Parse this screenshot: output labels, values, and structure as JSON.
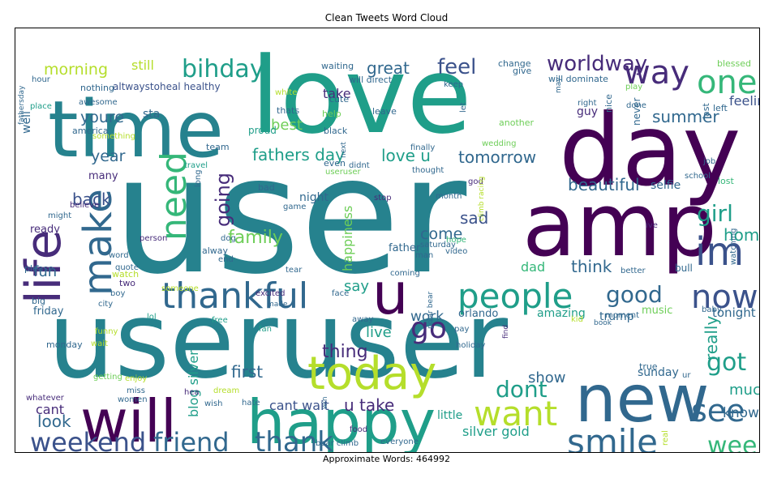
{
  "title": "Clean Tweets Word Cloud",
  "footer": "Approximate Words: 464992",
  "palette": {
    "purple": "#440154",
    "indigo": "#472c7a",
    "blue": "#3b528b",
    "steel": "#31688e",
    "teal": "#26828e",
    "sea": "#1f9e89",
    "green": "#35b779",
    "lime": "#6ece58",
    "yellowgreen": "#b5de2b",
    "yellow": "#e3e418"
  },
  "words": [
    {
      "text": "user",
      "color": "teal"
    },
    {
      "text": "love",
      "color": "sea"
    },
    {
      "text": "day",
      "color": "purple"
    },
    {
      "text": "amp",
      "color": "purple"
    },
    {
      "text": "time",
      "color": "teal"
    },
    {
      "text": "useruser",
      "color": "teal"
    },
    {
      "text": "happy",
      "color": "sea"
    },
    {
      "text": "will",
      "color": "purple"
    },
    {
      "text": "new",
      "color": "steel"
    },
    {
      "text": "today",
      "color": "yellowgreen"
    },
    {
      "text": "life",
      "color": "indigo"
    },
    {
      "text": "thankful",
      "color": "steel"
    },
    {
      "text": "people",
      "color": "sea"
    },
    {
      "text": "u",
      "color": "purple"
    },
    {
      "text": "smile",
      "color": "steel"
    },
    {
      "text": "want",
      "color": "yellowgreen"
    },
    {
      "text": "see",
      "color": "steel"
    },
    {
      "text": "friend",
      "color": "steel"
    },
    {
      "text": "weekend",
      "color": "blue"
    },
    {
      "text": "thank",
      "color": "steel"
    },
    {
      "text": "one",
      "color": "green"
    },
    {
      "text": "way",
      "color": "indigo"
    },
    {
      "text": "make",
      "color": "steel"
    },
    {
      "text": "need",
      "color": "green"
    },
    {
      "text": "im",
      "color": "blue"
    },
    {
      "text": "now",
      "color": "blue"
    },
    {
      "text": "good",
      "color": "steel"
    },
    {
      "text": "got",
      "color": "sea"
    },
    {
      "text": "week",
      "color": "green"
    },
    {
      "text": "bihday",
      "color": "sea"
    },
    {
      "text": "worldway",
      "color": "indigo"
    },
    {
      "text": "feel",
      "color": "blue"
    },
    {
      "text": "girl",
      "color": "sea"
    },
    {
      "text": "go",
      "color": "indigo"
    },
    {
      "text": "dont",
      "color": "sea"
    },
    {
      "text": "going",
      "color": "indigo"
    },
    {
      "text": "family",
      "color": "lime"
    },
    {
      "text": "fathers day",
      "color": "sea"
    },
    {
      "text": "morning",
      "color": "yellowgreen"
    },
    {
      "text": "great",
      "color": "steel"
    },
    {
      "text": "love u",
      "color": "sea"
    },
    {
      "text": "tomorrow",
      "color": "steel"
    },
    {
      "text": "beautiful",
      "color": "steel"
    },
    {
      "text": "summer",
      "color": "steel"
    },
    {
      "text": "take",
      "color": "indigo"
    },
    {
      "text": "youre",
      "color": "steel"
    },
    {
      "text": "best",
      "color": "lime"
    },
    {
      "text": "year",
      "color": "steel"
    },
    {
      "text": "back",
      "color": "blue"
    },
    {
      "text": "first",
      "color": "steel"
    },
    {
      "text": "u take",
      "color": "indigo"
    },
    {
      "text": "look",
      "color": "steel"
    },
    {
      "text": "cant wait",
      "color": "blue"
    },
    {
      "text": "thing",
      "color": "indigo"
    },
    {
      "text": "live",
      "color": "sea"
    },
    {
      "text": "say",
      "color": "sea"
    },
    {
      "text": "work",
      "color": "steel"
    },
    {
      "text": "think",
      "color": "steel"
    },
    {
      "text": "sad",
      "color": "blue"
    },
    {
      "text": "come",
      "color": "steel"
    },
    {
      "text": "home",
      "color": "sea"
    },
    {
      "text": "really",
      "color": "sea"
    },
    {
      "text": "much",
      "color": "sea"
    },
    {
      "text": "show",
      "color": "steel"
    },
    {
      "text": "know",
      "color": "steel"
    },
    {
      "text": "iam positive",
      "color": "steel"
    },
    {
      "text": "silver gold",
      "color": "sea"
    },
    {
      "text": "blog silver",
      "color": "sea"
    },
    {
      "text": "fun",
      "color": "steel"
    },
    {
      "text": "still",
      "color": "yellowgreen"
    },
    {
      "text": "happiness",
      "color": "lime"
    },
    {
      "text": "dad",
      "color": "green"
    },
    {
      "text": "feeling",
      "color": "blue"
    },
    {
      "text": "tonight",
      "color": "steel"
    },
    {
      "text": "sunday",
      "color": "steel"
    },
    {
      "text": "cant",
      "color": "indigo"
    },
    {
      "text": "little",
      "color": "sea"
    },
    {
      "text": "selfie",
      "color": "steel"
    },
    {
      "text": "amazing",
      "color": "sea"
    },
    {
      "text": "trump",
      "color": "steel"
    },
    {
      "text": "music",
      "color": "lime"
    },
    {
      "text": "night",
      "color": "steel"
    },
    {
      "text": "father",
      "color": "steel"
    },
    {
      "text": "orlando",
      "color": "steel"
    },
    {
      "text": "bull",
      "color": "steel"
    },
    {
      "text": "sta",
      "color": "steel"
    },
    {
      "text": "many",
      "color": "indigo"
    },
    {
      "text": "ready",
      "color": "indigo"
    },
    {
      "text": "well",
      "color": "steel"
    },
    {
      "text": "friday",
      "color": "steel"
    },
    {
      "text": "guy",
      "color": "indigo"
    },
    {
      "text": "never",
      "color": "steel"
    },
    {
      "text": "nothing",
      "color": "steel"
    },
    {
      "text": "altwaystoheal healthy",
      "color": "blue"
    },
    {
      "text": "white",
      "color": "yellowgreen"
    },
    {
      "text": "thats",
      "color": "steel"
    },
    {
      "text": "cute",
      "color": "steel"
    },
    {
      "text": "waiting",
      "color": "steel"
    },
    {
      "text": "will direct",
      "color": "steel"
    },
    {
      "text": "change",
      "color": "steel"
    },
    {
      "text": "give",
      "color": "steel"
    },
    {
      "text": "will dominate",
      "color": "steel"
    },
    {
      "text": "blessed",
      "color": "lime"
    },
    {
      "text": "keep",
      "color": "steel"
    },
    {
      "text": "play",
      "color": "lime"
    },
    {
      "text": "right",
      "color": "steel"
    },
    {
      "text": "hour",
      "color": "steel"
    },
    {
      "text": "awesome",
      "color": "steel"
    },
    {
      "text": "place",
      "color": "sea"
    },
    {
      "text": "america",
      "color": "steel"
    },
    {
      "text": "proud",
      "color": "sea"
    },
    {
      "text": "help",
      "color": "lime"
    },
    {
      "text": "black",
      "color": "steel"
    },
    {
      "text": "leave",
      "color": "steel"
    },
    {
      "text": "another",
      "color": "lime"
    },
    {
      "text": "may",
      "color": "steel"
    },
    {
      "text": "left",
      "color": "steel"
    },
    {
      "text": "done",
      "color": "steel"
    },
    {
      "text": "last",
      "color": "steel"
    },
    {
      "text": "nice",
      "color": "steel"
    },
    {
      "text": "let",
      "color": "steel"
    },
    {
      "text": "wedding",
      "color": "lime"
    },
    {
      "text": "finally",
      "color": "steel"
    },
    {
      "text": "team",
      "color": "steel"
    },
    {
      "text": "travel",
      "color": "sea"
    },
    {
      "text": "something",
      "color": "yellowgreen"
    },
    {
      "text": "even",
      "color": "steel"
    },
    {
      "text": "useruser",
      "color": "lime"
    },
    {
      "text": "didnt",
      "color": "steel"
    },
    {
      "text": "thought",
      "color": "steel"
    },
    {
      "text": "god",
      "color": "indigo"
    },
    {
      "text": "job",
      "color": "steel"
    },
    {
      "text": "school",
      "color": "steel"
    },
    {
      "text": "lost",
      "color": "green"
    },
    {
      "text": "fathersday",
      "color": "steel"
    },
    {
      "text": "believe",
      "color": "indigo"
    },
    {
      "text": "might",
      "color": "steel"
    },
    {
      "text": "long",
      "color": "steel"
    },
    {
      "text": "bad",
      "color": "steel"
    },
    {
      "text": "game",
      "color": "steel"
    },
    {
      "text": "next",
      "color": "steel"
    },
    {
      "text": "stop",
      "color": "indigo"
    },
    {
      "text": "month",
      "color": "steel"
    },
    {
      "text": "ive",
      "color": "indigo"
    },
    {
      "text": "saturday",
      "color": "steel"
    },
    {
      "text": "climb racing",
      "color": "yellowgreen"
    },
    {
      "text": "person",
      "color": "indigo"
    },
    {
      "text": "dog",
      "color": "steel"
    },
    {
      "text": "end",
      "color": "steel"
    },
    {
      "text": "alway",
      "color": "steel"
    },
    {
      "text": "word",
      "color": "steel"
    },
    {
      "text": "quote",
      "color": "steel"
    },
    {
      "text": "please",
      "color": "steel"
    },
    {
      "text": "watch",
      "color": "yellowgreen"
    },
    {
      "text": "two",
      "color": "indigo"
    },
    {
      "text": "boy",
      "color": "steel"
    },
    {
      "text": "big",
      "color": "steel"
    },
    {
      "text": "city",
      "color": "steel"
    },
    {
      "text": "someone",
      "color": "yellowgreen"
    },
    {
      "text": "tear",
      "color": "steel"
    },
    {
      "text": "man",
      "color": "steel"
    },
    {
      "text": "hope",
      "color": "green"
    },
    {
      "text": "video",
      "color": "steel"
    },
    {
      "text": "better",
      "color": "steel"
    },
    {
      "text": "watching",
      "color": "steel"
    },
    {
      "text": "coming",
      "color": "steel"
    },
    {
      "text": "face",
      "color": "steel"
    },
    {
      "text": "excited",
      "color": "indigo"
    },
    {
      "text": "made",
      "color": "steel"
    },
    {
      "text": "lol",
      "color": "sea"
    },
    {
      "text": "funny",
      "color": "yellowgreen"
    },
    {
      "text": "free",
      "color": "sea"
    },
    {
      "text": "fan",
      "color": "sea"
    },
    {
      "text": "away",
      "color": "steel"
    },
    {
      "text": "polar bear",
      "color": "steel"
    },
    {
      "text": "pay",
      "color": "steel"
    },
    {
      "text": "find",
      "color": "indigo"
    },
    {
      "text": "book",
      "color": "steel"
    },
    {
      "text": "kid",
      "color": "yellowgreen"
    },
    {
      "text": "moment",
      "color": "steel"
    },
    {
      "text": "baby",
      "color": "steel"
    },
    {
      "text": "monday",
      "color": "steel"
    },
    {
      "text": "wait",
      "color": "yellowgreen"
    },
    {
      "text": "holiday",
      "color": "steel"
    },
    {
      "text": "true",
      "color": "steel"
    },
    {
      "text": "getting",
      "color": "lime"
    },
    {
      "text": "enjoy",
      "color": "yellowgreen"
    },
    {
      "text": "hea",
      "color": "indigo"
    },
    {
      "text": "dream",
      "color": "yellowgreen"
    },
    {
      "text": "ur",
      "color": "steel"
    },
    {
      "text": "whatever",
      "color": "indigo"
    },
    {
      "text": "miss",
      "color": "steel"
    },
    {
      "text": "women",
      "color": "steel"
    },
    {
      "text": "wish",
      "color": "steel"
    },
    {
      "text": "hate",
      "color": "steel"
    },
    {
      "text": "win",
      "color": "steel"
    },
    {
      "text": "food",
      "color": "indigo"
    },
    {
      "text": "bear climb",
      "color": "steel"
    },
    {
      "text": "everyone",
      "color": "steel"
    },
    {
      "text": "real",
      "color": "yellowgreen"
    }
  ]
}
